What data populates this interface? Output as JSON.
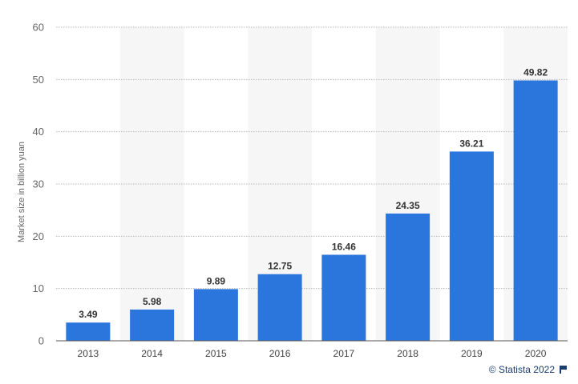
{
  "chart_data": {
    "type": "bar",
    "title": "",
    "xlabel": "",
    "ylabel": "Market size in billion yuan",
    "categories": [
      "2013",
      "2014",
      "2015",
      "2016",
      "2017",
      "2018",
      "2019",
      "2020"
    ],
    "values": [
      3.49,
      5.98,
      9.89,
      12.75,
      16.46,
      24.35,
      36.21,
      49.82
    ],
    "value_labels": [
      "3.49",
      "5.98",
      "9.89",
      "12.75",
      "16.46",
      "24.35",
      "36.21",
      "49.82"
    ],
    "ylim": [
      0,
      60
    ],
    "yticks": [
      0,
      10,
      20,
      30,
      40,
      50,
      60
    ],
    "grid": true,
    "bar_color": "#2a76dd",
    "alt_band_color": "#f6f6f6"
  },
  "credit": {
    "text": "© Statista 2022",
    "icon": "flag-icon"
  }
}
